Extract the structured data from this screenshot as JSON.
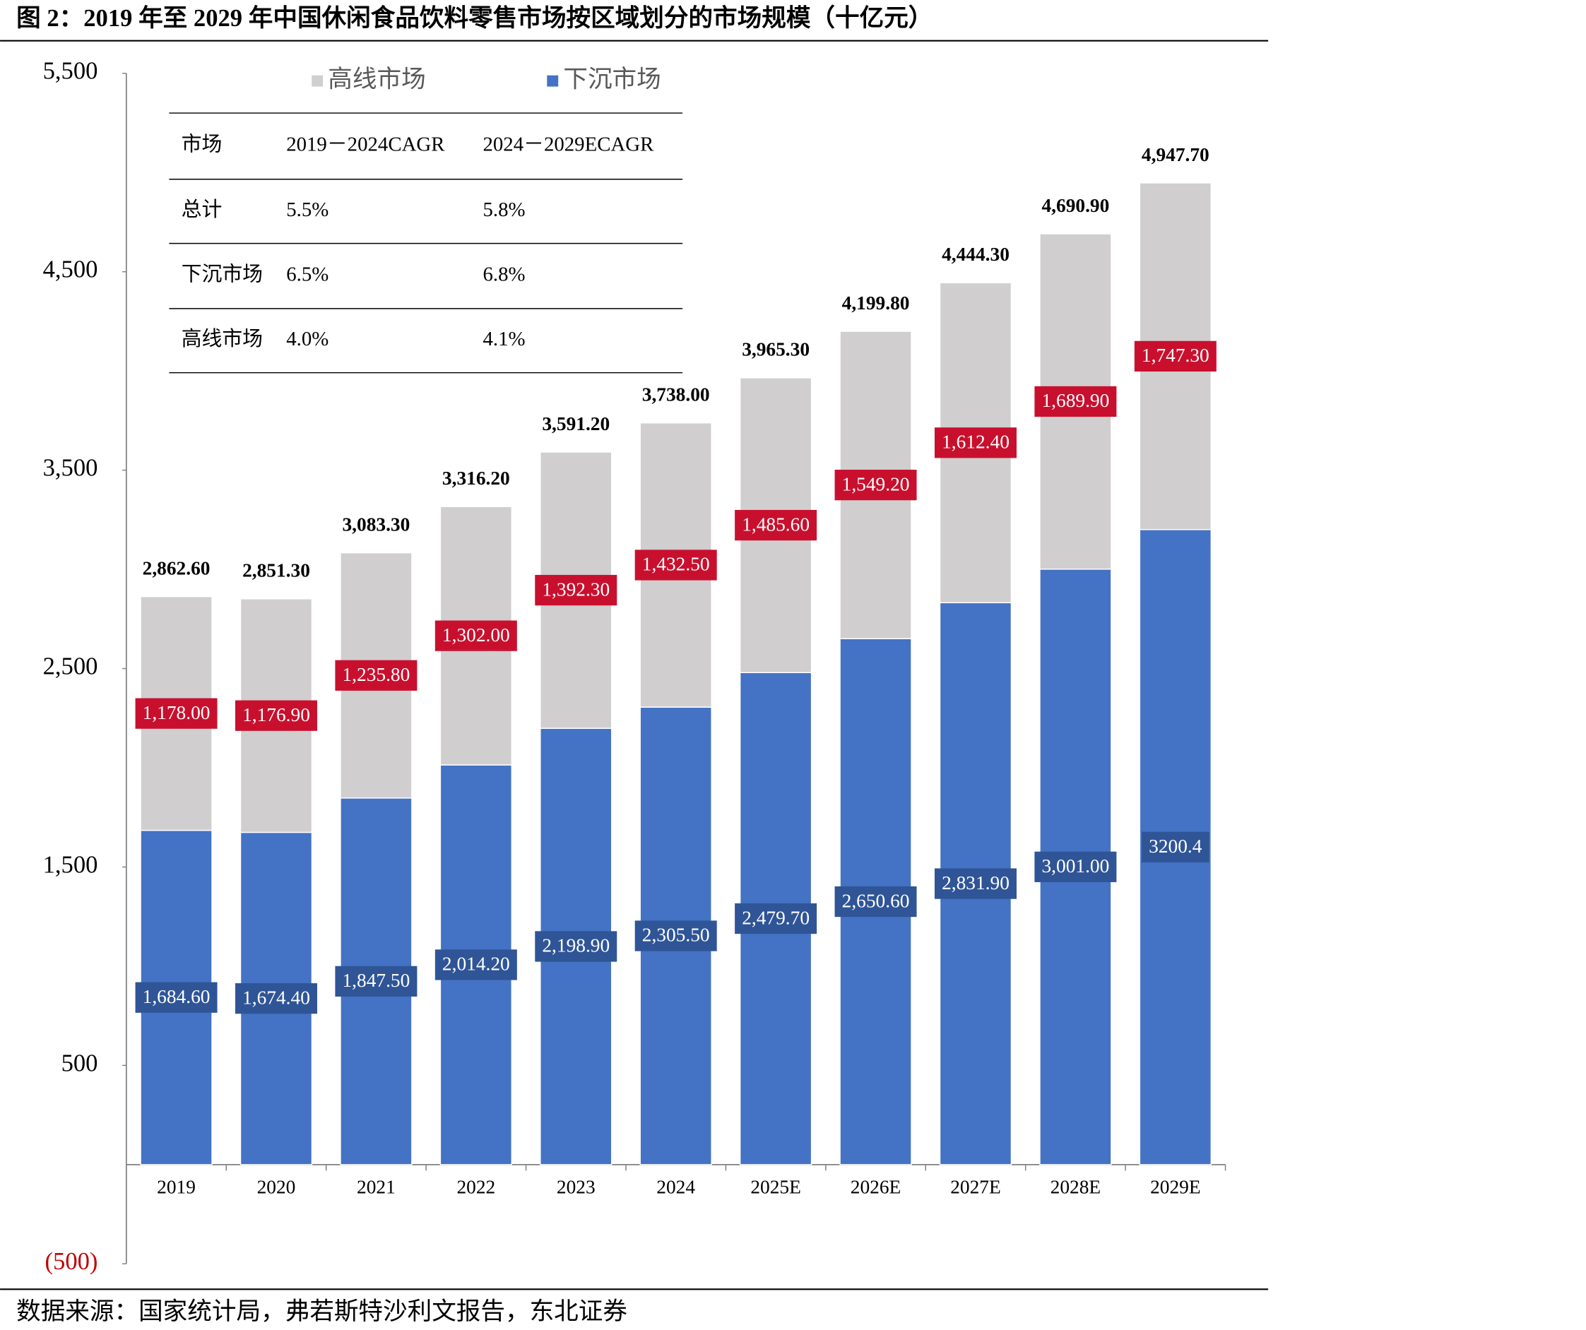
{
  "title": "图 2：2019 年至 2029 年中国休闲食品饮料零售市场按区域划分的市场规模（十亿元）",
  "chart_data": {
    "type": "stacked_bar",
    "categories": [
      "2019",
      "2020",
      "2021",
      "2022",
      "2023",
      "2024",
      "2025E",
      "2026E",
      "2027E",
      "2028E",
      "2029E"
    ],
    "series": [
      {
        "name": "高线市场",
        "color": "#d0cece",
        "label_color": "#c8102e",
        "values": [
          1178.0,
          1176.9,
          1235.8,
          1302.0,
          1392.3,
          1432.5,
          1485.6,
          1549.2,
          1612.4,
          1689.9,
          1747.3
        ],
        "value_labels": [
          "1,178.00",
          "1,176.90",
          "1,235.80",
          "1,302.00",
          "1,392.30",
          "1,432.50",
          "1,485.60",
          "1,549.20",
          "1,612.40",
          "1,689.90",
          "1,747.30"
        ]
      },
      {
        "name": "下沉市场",
        "color": "#4472c4",
        "label_color": "#2f5597",
        "values": [
          1684.6,
          1674.4,
          1847.5,
          2014.2,
          2198.9,
          2305.5,
          2479.7,
          2650.6,
          2831.9,
          3001.0,
          3200.4
        ],
        "value_labels": [
          "1,684.60",
          "1,674.40",
          "1,847.50",
          "2,014.20",
          "2,198.90",
          "2,305.50",
          "2,479.70",
          "2,650.60",
          "2,831.90",
          "3,001.00",
          "3200.4"
        ]
      }
    ],
    "totals": [
      2862.6,
      2851.3,
      3083.3,
      3316.2,
      3591.2,
      3738.0,
      3965.3,
      4199.8,
      4444.3,
      4690.9,
      4947.7
    ],
    "total_labels": [
      "2,862.60",
      "2,851.30",
      "3,083.30",
      "3,316.20",
      "3,591.20",
      "3,738.00",
      "3,965.30",
      "4,199.80",
      "4,444.30",
      "4,690.90",
      "4,947.70"
    ],
    "ylim": [
      -500,
      5500
    ],
    "yticks": [
      {
        "value": 5500,
        "label": "5,500"
      },
      {
        "value": 4500,
        "label": "4,500"
      },
      {
        "value": 3500,
        "label": "3,500"
      },
      {
        "value": 2500,
        "label": "2,500"
      },
      {
        "value": 1500,
        "label": "1,500"
      },
      500,
      {
        "value": -500,
        "label": "(500)"
      }
    ],
    "negative_tick_color": "#c00000"
  },
  "table": {
    "header": [
      "市场",
      "2019－2024CAGR",
      "2024－2029ECAGR"
    ],
    "rows": [
      [
        "总计",
        "5.5%",
        "5.8%"
      ],
      [
        "下沉市场",
        "6.5%",
        "6.8%"
      ],
      [
        "高线市场",
        "4.0%",
        "4.1%"
      ]
    ]
  },
  "source": "数据来源：国家统计局，弗若斯特沙利文报告，东北证券"
}
